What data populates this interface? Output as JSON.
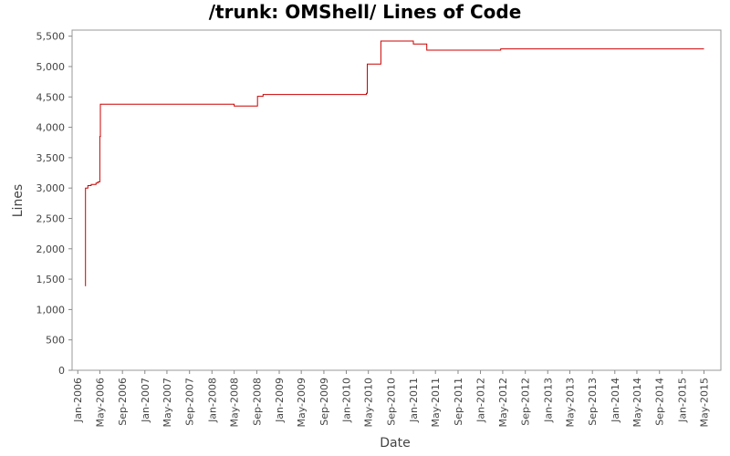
{
  "chart_data": {
    "type": "line",
    "title": "/trunk: OMShell/ Lines of Code",
    "xlabel": "Date",
    "ylabel": "Lines",
    "ylim": [
      0,
      5600
    ],
    "xlim": [
      "2005-12-01",
      "2015-08-01"
    ],
    "y_ticks": [
      0,
      500,
      1000,
      1500,
      2000,
      2500,
      3000,
      3500,
      4000,
      4500,
      5000,
      5500
    ],
    "y_tick_labels": [
      "0",
      "500",
      "1,000",
      "1,500",
      "2,000",
      "2,500",
      "3,000",
      "3,500",
      "4,000",
      "4,500",
      "5,000",
      "5,500"
    ],
    "x_ticks": [
      "2006-01-01",
      "2006-05-01",
      "2006-09-01",
      "2007-01-01",
      "2007-05-01",
      "2007-09-01",
      "2008-01-01",
      "2008-05-01",
      "2008-09-01",
      "2009-01-01",
      "2009-05-01",
      "2009-09-01",
      "2010-01-01",
      "2010-05-01",
      "2010-09-01",
      "2011-01-01",
      "2011-05-01",
      "2011-09-01",
      "2012-01-01",
      "2012-05-01",
      "2012-09-01",
      "2013-01-01",
      "2013-05-01",
      "2013-09-01",
      "2014-01-01",
      "2014-05-01",
      "2014-09-01",
      "2015-01-01",
      "2015-05-01"
    ],
    "x_tick_labels": [
      "Jan-2006",
      "May-2006",
      "Sep-2006",
      "Jan-2007",
      "May-2007",
      "Sep-2007",
      "Jan-2008",
      "May-2008",
      "Sep-2008",
      "Jan-2009",
      "May-2009",
      "Sep-2009",
      "Jan-2010",
      "May-2010",
      "Sep-2010",
      "Jan-2011",
      "May-2011",
      "Sep-2011",
      "Jan-2012",
      "May-2012",
      "Sep-2012",
      "Jan-2013",
      "May-2013",
      "Sep-2013",
      "Jan-2014",
      "May-2014",
      "Sep-2014",
      "Jan-2015",
      "May-2015"
    ],
    "grid": false,
    "line_color": "#cc0000",
    "series": [
      {
        "step": true,
        "points": [
          {
            "x": "2006-02-10",
            "y": 1390
          },
          {
            "x": "2006-02-12",
            "y": 3000
          },
          {
            "x": "2006-02-25",
            "y": 3040
          },
          {
            "x": "2006-03-15",
            "y": 3060
          },
          {
            "x": "2006-04-10",
            "y": 3080
          },
          {
            "x": "2006-04-20",
            "y": 3100
          },
          {
            "x": "2006-05-01",
            "y": 3850
          },
          {
            "x": "2006-05-04",
            "y": 4380
          },
          {
            "x": "2008-05-01",
            "y": 4350
          },
          {
            "x": "2008-09-05",
            "y": 4510
          },
          {
            "x": "2008-10-05",
            "y": 4540
          },
          {
            "x": "2010-04-20",
            "y": 4560
          },
          {
            "x": "2010-04-25",
            "y": 5040
          },
          {
            "x": "2010-07-08",
            "y": 5420
          },
          {
            "x": "2011-01-01",
            "y": 5370
          },
          {
            "x": "2011-03-15",
            "y": 5270
          },
          {
            "x": "2012-04-20",
            "y": 5290
          },
          {
            "x": "2015-05-01",
            "y": 5290
          }
        ]
      }
    ]
  }
}
